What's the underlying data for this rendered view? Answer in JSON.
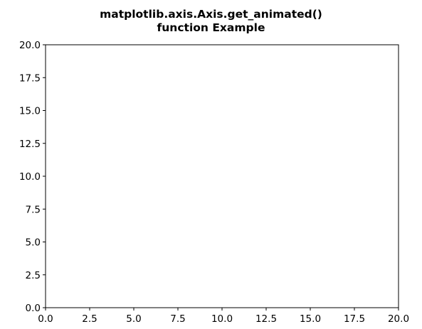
{
  "chart_data": {
    "type": "line",
    "title": [
      "matplotlib.axis.Axis.get_animated()",
      "function Example"
    ],
    "xlabel": "",
    "ylabel": "",
    "series": [],
    "xlim": [
      0,
      20
    ],
    "ylim": [
      0,
      20
    ],
    "xticks": [
      0,
      2.5,
      5,
      7.5,
      10,
      12.5,
      15,
      17.5,
      20
    ],
    "yticks": [
      0,
      2.5,
      5,
      7.5,
      10,
      12.5,
      15,
      17.5,
      20
    ],
    "xtick_labels": [
      "0.0",
      "2.5",
      "5.0",
      "7.5",
      "10.0",
      "12.5",
      "15.0",
      "17.5",
      "20.0"
    ],
    "ytick_labels": [
      "0.0",
      "2.5",
      "5.0",
      "7.5",
      "10.0",
      "12.5",
      "15.0",
      "17.5",
      "20.0"
    ],
    "grid": false,
    "legend": "none",
    "colors": {
      "background": "#ffffff",
      "axes": "#000000"
    }
  }
}
